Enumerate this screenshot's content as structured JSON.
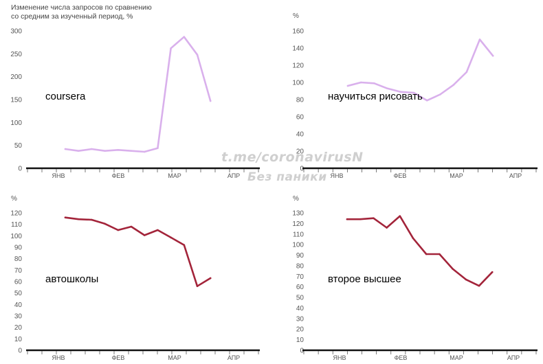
{
  "caption_line1": "Изменение числа запросов по сравнению",
  "caption_line2": "со средним за изученный период, %",
  "watermark_line1": "t.me/coronavirusN",
  "watermark_line2": "Без паники",
  "colors": {
    "light": "#d9b0ec",
    "dark": "#a3243a",
    "axis": "#111111",
    "tick": "#555555"
  },
  "chart_data": [
    {
      "type": "line",
      "label": "coursera",
      "unit": "",
      "color": "#d9b0ec",
      "x_ticks": [
        "ЯНВ",
        "ФЕВ",
        "МАР",
        "АПР"
      ],
      "ylim": [
        0,
        300
      ],
      "y_ticks": [
        0,
        50,
        100,
        150,
        200,
        250,
        300
      ],
      "values": [
        42,
        38,
        42,
        38,
        40,
        38,
        36,
        44,
        262,
        287,
        248,
        147
      ]
    },
    {
      "type": "line",
      "label": "научиться рисовать",
      "unit": "%",
      "color": "#d9b0ec",
      "x_ticks": [
        "ЯНВ",
        "ФЕВ",
        "МАР",
        "АПР"
      ],
      "ylim": [
        0,
        160
      ],
      "y_ticks": [
        0,
        20,
        40,
        60,
        80,
        100,
        120,
        140,
        160
      ],
      "values": [
        96,
        100,
        99,
        93,
        89,
        88,
        79,
        86,
        97,
        112,
        150,
        131
      ]
    },
    {
      "type": "line",
      "label": "автошколы",
      "unit": "%",
      "color": "#a3243a",
      "x_ticks": [
        "ЯНВ",
        "ФЕВ",
        "МАР",
        "АПР"
      ],
      "ylim": [
        0,
        120
      ],
      "y_ticks": [
        0,
        10,
        20,
        30,
        40,
        50,
        60,
        70,
        80,
        90,
        100,
        110,
        120
      ],
      "values": [
        116,
        114.5,
        114,
        110.5,
        105,
        108,
        100.5,
        105,
        98.5,
        92,
        56,
        63
      ]
    },
    {
      "type": "line",
      "label": "второе высшее",
      "unit": "%",
      "color": "#a3243a",
      "x_ticks": [
        "ЯНВ",
        "ФЕВ",
        "МАР",
        "АПР"
      ],
      "ylim": [
        0,
        130
      ],
      "y_ticks": [
        0,
        10,
        20,
        30,
        40,
        50,
        60,
        70,
        80,
        90,
        100,
        110,
        120,
        130
      ],
      "values": [
        124,
        124,
        125,
        116,
        127,
        106,
        91,
        91,
        77,
        67,
        61,
        74
      ]
    }
  ]
}
